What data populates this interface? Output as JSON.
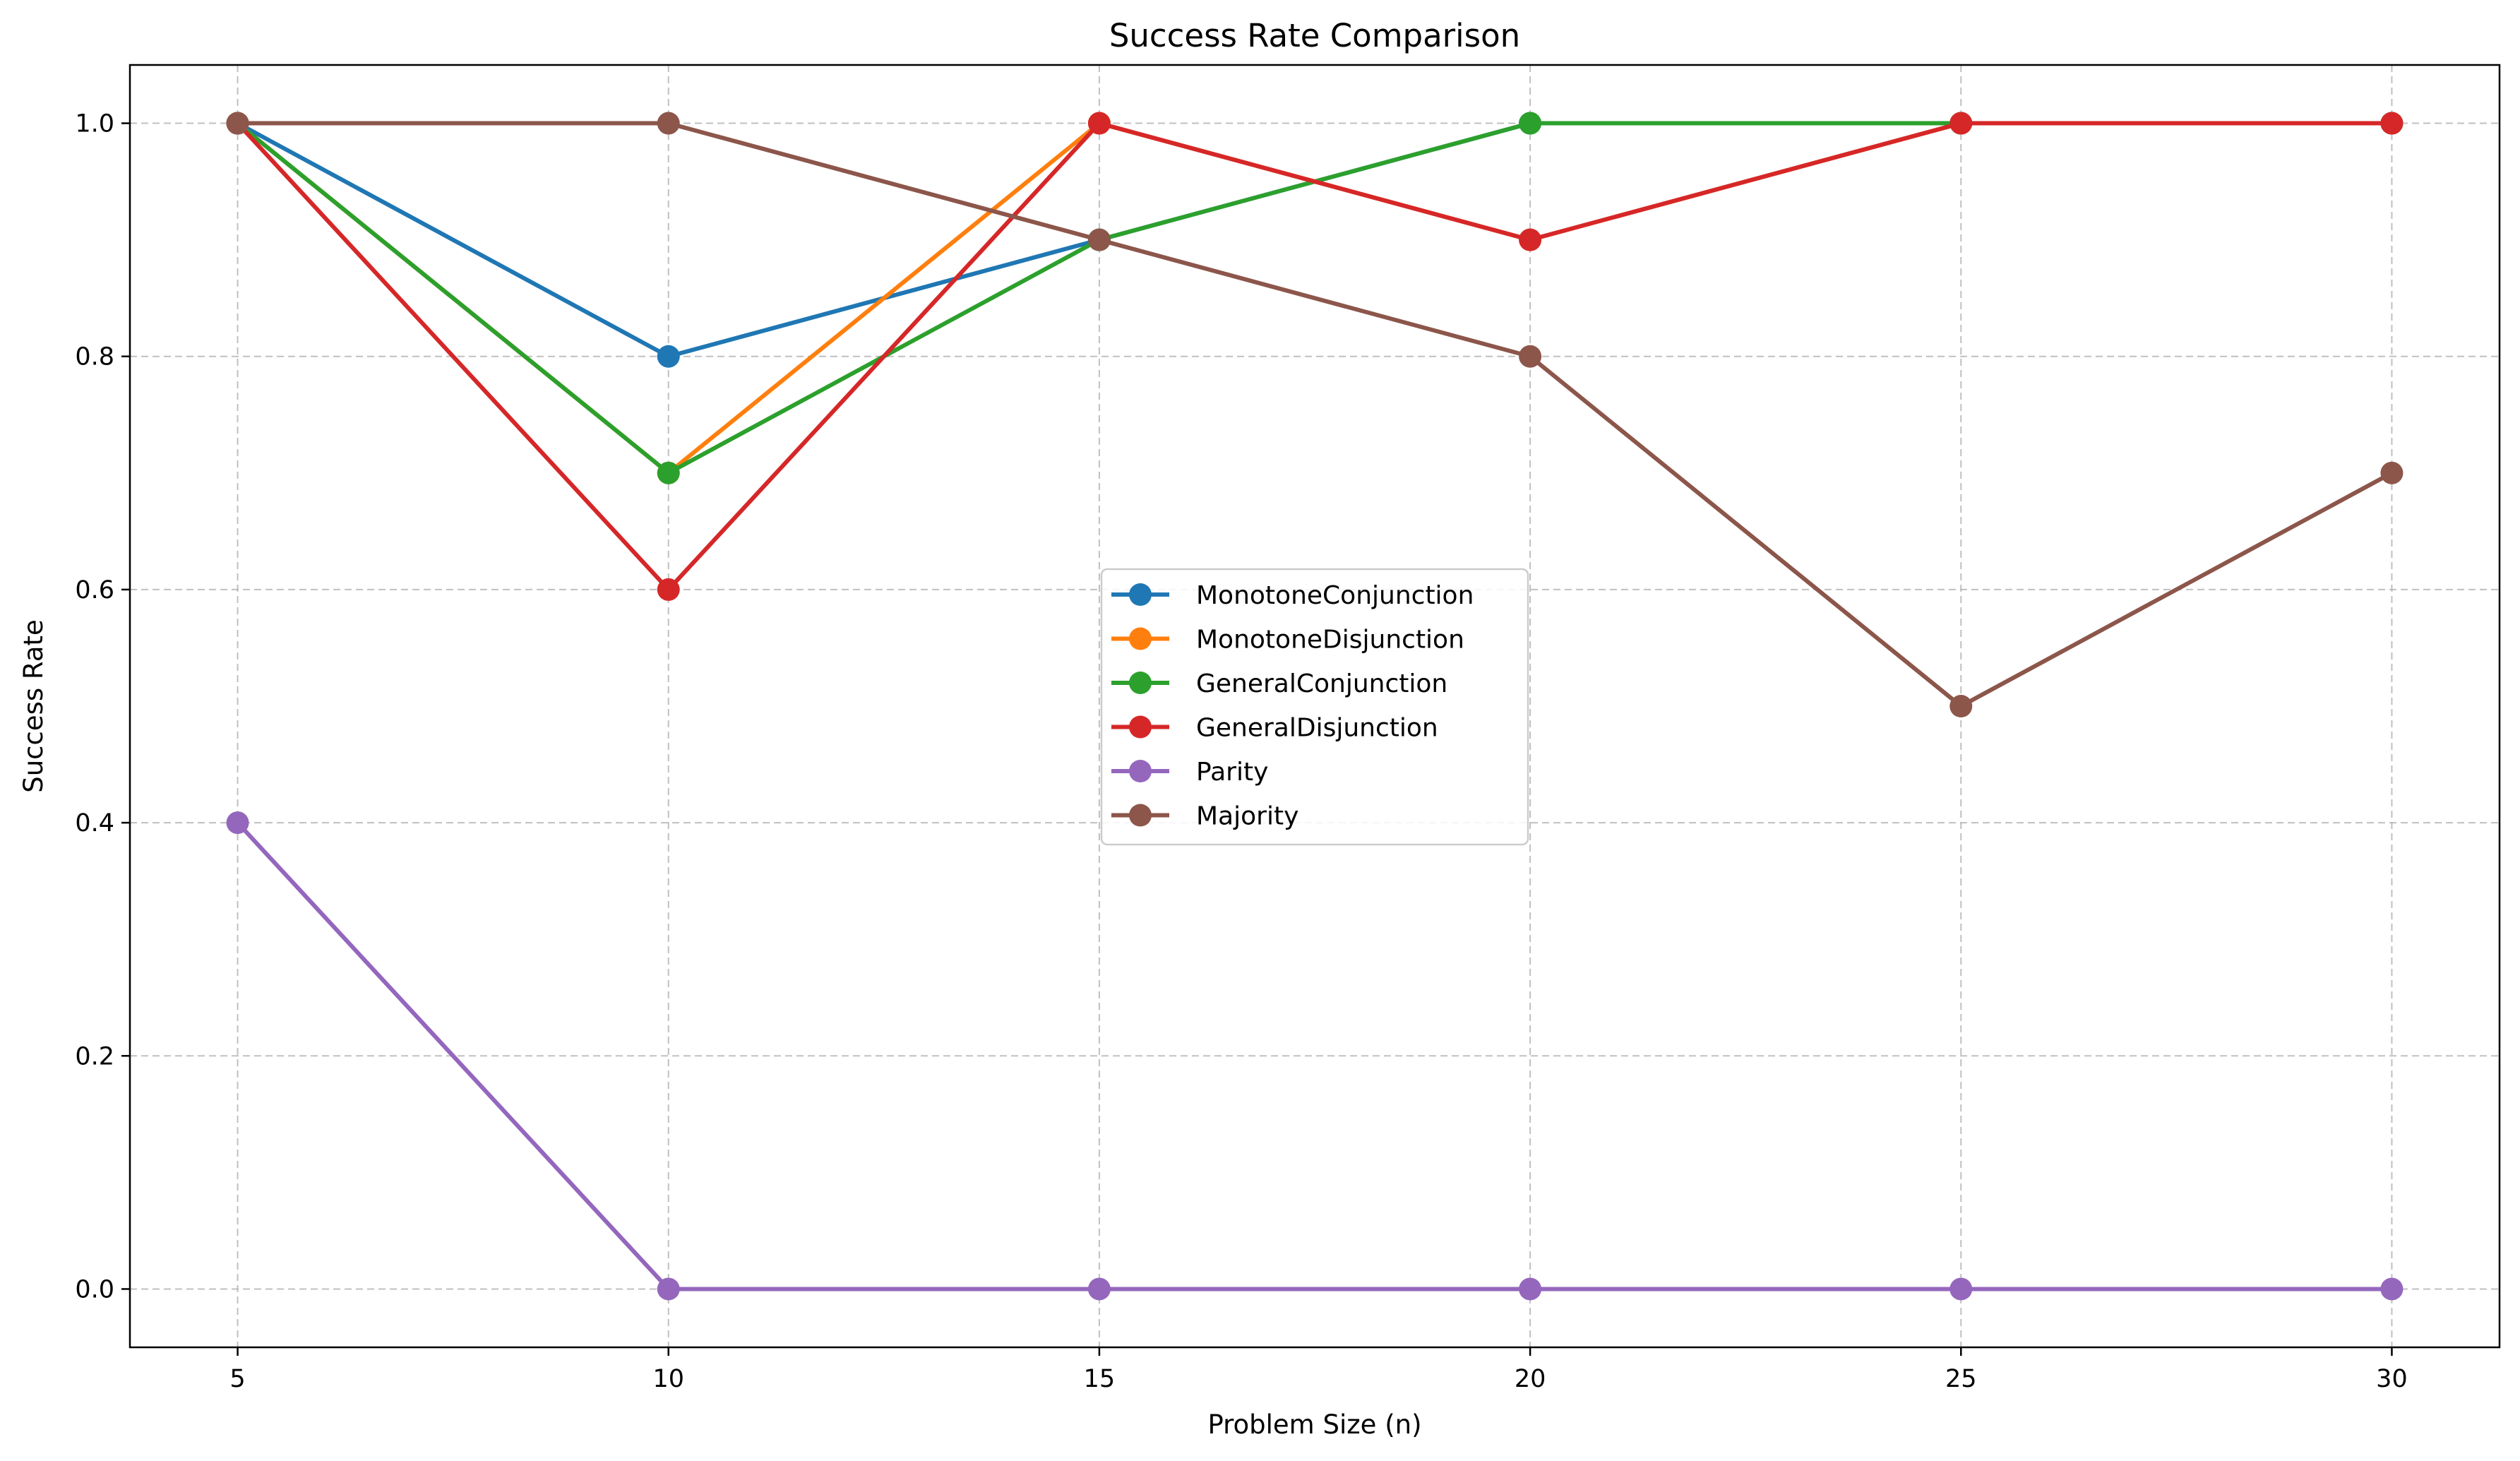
{
  "chart_data": {
    "type": "line",
    "title": "Success Rate Comparison",
    "xlabel": "Problem Size (n)",
    "ylabel": "Success Rate",
    "x": [
      5,
      10,
      15,
      20,
      25,
      30
    ],
    "xticks": [
      "5",
      "10",
      "15",
      "20",
      "25",
      "30"
    ],
    "yticks": [
      "0.0",
      "0.2",
      "0.4",
      "0.6",
      "0.8",
      "1.0"
    ],
    "xlim": [
      3.75,
      31.25
    ],
    "ylim": [
      -0.05,
      1.05
    ],
    "grid": true,
    "legend_position": "center",
    "series": [
      {
        "name": "MonotoneConjunction",
        "color": "#1f77b4",
        "values": [
          1.0,
          0.8,
          0.9,
          1.0,
          1.0,
          1.0
        ]
      },
      {
        "name": "MonotoneDisjunction",
        "color": "#ff7f0e",
        "values": [
          1.0,
          0.7,
          1.0,
          0.9,
          1.0,
          1.0
        ]
      },
      {
        "name": "GeneralConjunction",
        "color": "#2ca02c",
        "values": [
          1.0,
          0.7,
          0.9,
          1.0,
          1.0,
          1.0
        ]
      },
      {
        "name": "GeneralDisjunction",
        "color": "#d62728",
        "values": [
          1.0,
          0.6,
          1.0,
          0.9,
          1.0,
          1.0
        ]
      },
      {
        "name": "Parity",
        "color": "#9467bd",
        "values": [
          0.4,
          0.0,
          0.0,
          0.0,
          0.0,
          0.0
        ]
      },
      {
        "name": "Majority",
        "color": "#8c564b",
        "values": [
          1.0,
          1.0,
          0.9,
          0.8,
          0.5,
          0.7
        ]
      }
    ]
  }
}
